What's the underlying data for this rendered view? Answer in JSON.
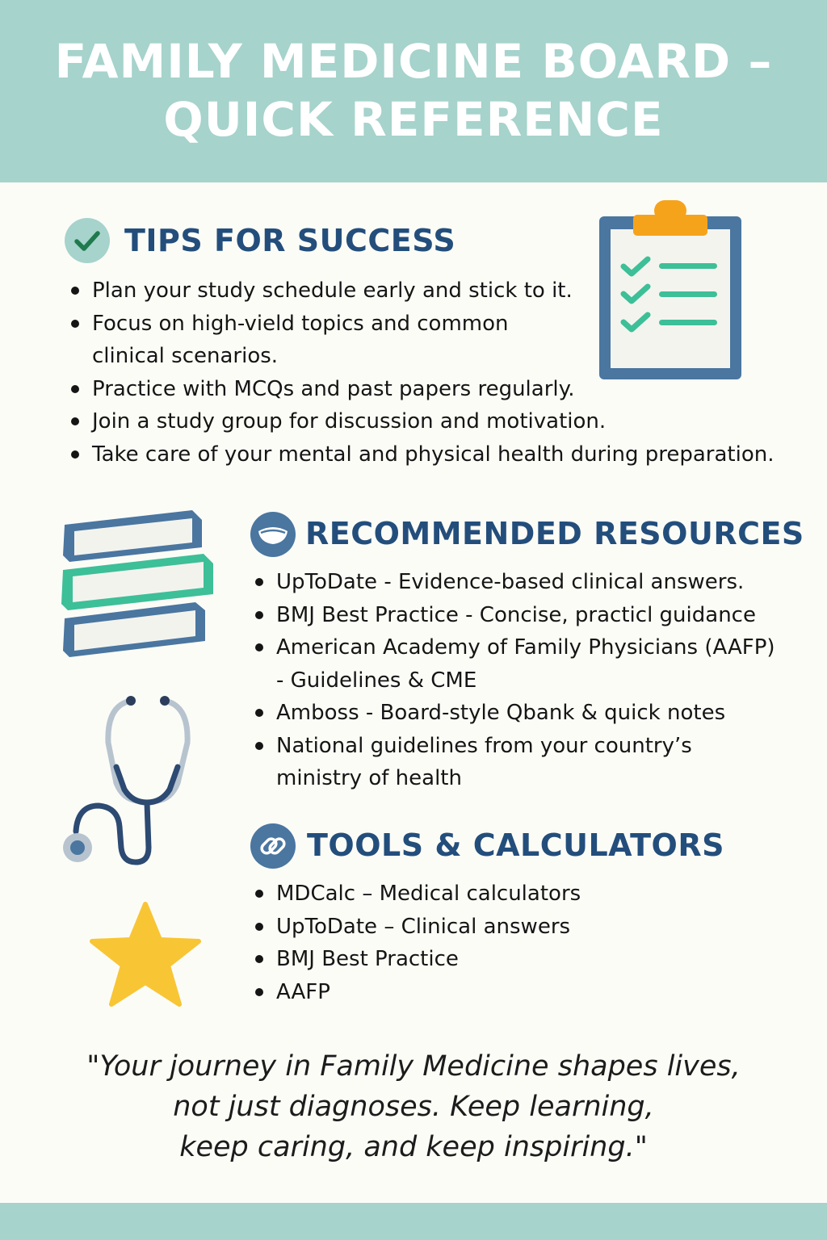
{
  "header": {
    "title_line1": "FAMILY MEDICINE BOARD –",
    "title_line2": "QUICK REFERENCE"
  },
  "tips": {
    "heading": "TIPS FOR SUCCESS",
    "icon": "check-circle-icon",
    "items": [
      "Plan your study schedule early and stick to it.",
      "Focus on high-vield topics and common clinical scenarios.",
      "Practice with MCQs and past papers regularly.",
      "Join a study group for discussion and motivation.",
      "Take care of your mental and physical health during preparation."
    ]
  },
  "resources": {
    "heading": "RECOMMENDED RESOURCES",
    "icon": "bowl-icon",
    "items": [
      "UpToDate - Evidence-based clinical answers.",
      "BMJ Best Practice - Concise, practicl guidance",
      "American Academy of Family Physicians (AAFP) - Guidelines & CME",
      "Amboss - Board-style Qbank & quick notes",
      "National guidelines from your country’s ministry of health"
    ]
  },
  "tools": {
    "heading": "TOOLS & CALCULATORS",
    "icon": "link-icon",
    "items": [
      "MDCalc – Medical calculators",
      "UpToDate – Clinical answers",
      "BMJ Best Practice",
      "AAFP"
    ]
  },
  "quote": {
    "line1": "\"Your journey in Family Medicine shapes lives,",
    "line2": "not just diagnoses. Keep learning,",
    "line3": "keep caring, and keep inspiring.\""
  },
  "illustrations": [
    "clipboard-checklist-icon",
    "book-stack-icon",
    "stethoscope-icon",
    "star-icon"
  ],
  "colors": {
    "header_band": "#a6d3cc",
    "heading_text": "#234e7c",
    "accent_green": "#3dbf98",
    "accent_orange": "#f6a31c",
    "star_yellow": "#f8c534",
    "background": "#fcfcf7"
  }
}
